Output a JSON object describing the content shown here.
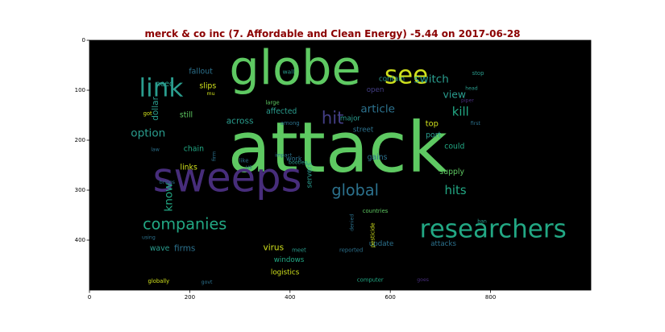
{
  "chart_data": {
    "type": "wordcloud",
    "title": "merck & co inc (7. Affordable and Clean Energy) -5.44 on 2017-06-28",
    "xlim": [
      0,
      1000
    ],
    "ylim": [
      0,
      500
    ],
    "x_ticks": [
      "0",
      "200",
      "400",
      "600",
      "800"
    ],
    "y_ticks": [
      "0",
      "100",
      "200",
      "300",
      "400"
    ],
    "x_tick_values": [
      0,
      200,
      400,
      600,
      800
    ],
    "y_tick_values": [
      0,
      100,
      200,
      300,
      400
    ],
    "colors": {
      "background": "#000000",
      "title": "#8b0000"
    },
    "words": [
      {
        "text": "attack",
        "x": 495,
        "y": 215,
        "size": 140,
        "color": "#5ec962"
      },
      {
        "text": "globe",
        "x": 410,
        "y": 55,
        "size": 95,
        "color": "#5ec962"
      },
      {
        "text": "sweeps",
        "x": 275,
        "y": 275,
        "size": 80,
        "color": "#472d7b"
      },
      {
        "text": "researchers",
        "x": 805,
        "y": 378,
        "size": 50,
        "color": "#22a884"
      },
      {
        "text": "link",
        "x": 143,
        "y": 96,
        "size": 50,
        "color": "#2a9d8e"
      },
      {
        "text": "see",
        "x": 632,
        "y": 70,
        "size": 50,
        "color": "#d0e11c"
      },
      {
        "text": "companies",
        "x": 190,
        "y": 368,
        "size": 31,
        "color": "#22a884"
      },
      {
        "text": "global",
        "x": 530,
        "y": 300,
        "size": 31,
        "color": "#2c728e"
      },
      {
        "text": "hit",
        "x": 485,
        "y": 155,
        "size": 34,
        "color": "#433e85"
      },
      {
        "text": "hits",
        "x": 730,
        "y": 300,
        "size": 24,
        "color": "#22a884"
      },
      {
        "text": "kill",
        "x": 740,
        "y": 143,
        "size": 24,
        "color": "#22a884"
      },
      {
        "text": "switch",
        "x": 682,
        "y": 78,
        "size": 22,
        "color": "#2a9d8e"
      },
      {
        "text": "article",
        "x": 575,
        "y": 138,
        "size": 22,
        "color": "#2c728e"
      },
      {
        "text": "view",
        "x": 728,
        "y": 108,
        "size": 20,
        "color": "#2a9d8e"
      },
      {
        "text": "option",
        "x": 117,
        "y": 186,
        "size": 22,
        "color": "#2a9d8e"
      },
      {
        "text": "know",
        "x": 158,
        "y": 314,
        "size": 22,
        "color": "#22a884",
        "rotate": -90
      },
      {
        "text": "dollar",
        "x": 132,
        "y": 137,
        "size": 17,
        "color": "#2a9d8e",
        "rotate": -90
      },
      {
        "text": "across",
        "x": 300,
        "y": 162,
        "size": 17,
        "color": "#2a9d8e"
      },
      {
        "text": "firms",
        "x": 190,
        "y": 417,
        "size": 17,
        "color": "#2c728e"
      },
      {
        "text": "virus",
        "x": 367,
        "y": 415,
        "size": 17,
        "color": "#d0e11c"
      },
      {
        "text": "windows",
        "x": 398,
        "y": 440,
        "size": 14,
        "color": "#22a884"
      },
      {
        "text": "logistics",
        "x": 390,
        "y": 465,
        "size": 14,
        "color": "#d0e11c"
      },
      {
        "text": "affected",
        "x": 383,
        "y": 143,
        "size": 15,
        "color": "#2a9d8e"
      },
      {
        "text": "chain",
        "x": 208,
        "y": 218,
        "size": 15,
        "color": "#22a884"
      },
      {
        "text": "links",
        "x": 198,
        "y": 255,
        "size": 15,
        "color": "#d0e11c"
      },
      {
        "text": "slips",
        "x": 236,
        "y": 92,
        "size": 15,
        "color": "#d0e11c"
      },
      {
        "text": "fallout",
        "x": 222,
        "y": 63,
        "size": 15,
        "color": "#2c728e"
      },
      {
        "text": "need",
        "x": 150,
        "y": 88,
        "size": 15,
        "color": "#2a9d8e"
      },
      {
        "text": "still",
        "x": 193,
        "y": 150,
        "size": 15,
        "color": "#5ec962"
      },
      {
        "text": "wave",
        "x": 140,
        "y": 417,
        "size": 15,
        "color": "#2a9d8e"
      },
      {
        "text": "work",
        "x": 408,
        "y": 236,
        "size": 13,
        "color": "#2c728e"
      },
      {
        "text": "major",
        "x": 520,
        "y": 157,
        "size": 14,
        "color": "#2a9d8e"
      },
      {
        "text": "street",
        "x": 546,
        "y": 180,
        "size": 14,
        "color": "#2c728e"
      },
      {
        "text": "top",
        "x": 683,
        "y": 168,
        "size": 16,
        "color": "#d0e11c"
      },
      {
        "text": "port",
        "x": 686,
        "y": 190,
        "size": 15,
        "color": "#2a9d8e"
      },
      {
        "text": "could",
        "x": 728,
        "y": 213,
        "size": 15,
        "color": "#22a884"
      },
      {
        "text": "supply",
        "x": 723,
        "y": 264,
        "size": 15,
        "color": "#5ec962"
      },
      {
        "text": "gains",
        "x": 574,
        "y": 235,
        "size": 15,
        "color": "#2c728e"
      },
      {
        "text": "attacks",
        "x": 706,
        "y": 408,
        "size": 14,
        "color": "#2c728e"
      },
      {
        "text": "update",
        "x": 582,
        "y": 408,
        "size": 14,
        "color": "#2c728e"
      },
      {
        "text": "contain",
        "x": 603,
        "y": 78,
        "size": 14,
        "color": "#2a9d8e"
      },
      {
        "text": "open",
        "x": 570,
        "y": 100,
        "size": 14,
        "color": "#433e85"
      },
      {
        "text": "servers",
        "x": 440,
        "y": 270,
        "size": 14,
        "color": "#2a9d8e",
        "rotate": -90
      },
      {
        "text": "computer",
        "x": 560,
        "y": 480,
        "size": 11,
        "color": "#22a884"
      },
      {
        "text": "countries",
        "x": 570,
        "y": 342,
        "size": 11,
        "color": "#5ec962"
      },
      {
        "text": "reported",
        "x": 522,
        "y": 420,
        "size": 11,
        "color": "#2c728e"
      },
      {
        "text": "pesticide",
        "x": 565,
        "y": 390,
        "size": 11,
        "color": "#d0e11c",
        "rotate": -90
      },
      {
        "text": "denied",
        "x": 524,
        "y": 365,
        "size": 10,
        "color": "#2c728e",
        "rotate": -90
      },
      {
        "text": "wall",
        "x": 397,
        "y": 63,
        "size": 12,
        "color": "#2a9d8e"
      },
      {
        "text": "large",
        "x": 365,
        "y": 125,
        "size": 11,
        "color": "#5ec962"
      },
      {
        "text": "among",
        "x": 400,
        "y": 166,
        "size": 11,
        "color": "#2c728e"
      },
      {
        "text": "impact",
        "x": 387,
        "y": 231,
        "size": 10,
        "color": "#2c728e"
      },
      {
        "text": "bootleg",
        "x": 416,
        "y": 245,
        "size": 10,
        "color": "#2a9d8e"
      },
      {
        "text": "like",
        "x": 308,
        "y": 241,
        "size": 11,
        "color": "#2c728e"
      },
      {
        "text": "us",
        "x": 318,
        "y": 254,
        "size": 11,
        "color": "#2c728e"
      },
      {
        "text": "meet",
        "x": 418,
        "y": 420,
        "size": 11,
        "color": "#2a9d8e"
      },
      {
        "text": "got",
        "x": 116,
        "y": 147,
        "size": 11,
        "color": "#d0e11c"
      },
      {
        "text": "mu",
        "x": 242,
        "y": 107,
        "size": 10,
        "color": "#d0e11c"
      },
      {
        "text": "law",
        "x": 131,
        "y": 219,
        "size": 10,
        "color": "#2c728e"
      },
      {
        "text": "firm",
        "x": 249,
        "y": 232,
        "size": 10,
        "color": "#2c728e",
        "rotate": -90
      },
      {
        "text": "brings",
        "x": 155,
        "y": 285,
        "size": 10,
        "color": "#2c728e"
      },
      {
        "text": "using",
        "x": 118,
        "y": 395,
        "size": 10,
        "color": "#2c728e"
      },
      {
        "text": "globally",
        "x": 138,
        "y": 482,
        "size": 11,
        "color": "#d0e11c"
      },
      {
        "text": "govt",
        "x": 234,
        "y": 485,
        "size": 10,
        "color": "#2c728e"
      },
      {
        "text": "stop",
        "x": 775,
        "y": 66,
        "size": 11,
        "color": "#2a9d8e"
      },
      {
        "text": "head",
        "x": 762,
        "y": 97,
        "size": 10,
        "color": "#2a9d8e"
      },
      {
        "text": "piper",
        "x": 754,
        "y": 121,
        "size": 10,
        "color": "#472d7b"
      },
      {
        "text": "first",
        "x": 770,
        "y": 167,
        "size": 10,
        "color": "#2c728e"
      },
      {
        "text": "ban",
        "x": 783,
        "y": 363,
        "size": 10,
        "color": "#2a9d8e"
      },
      {
        "text": "goes",
        "x": 665,
        "y": 480,
        "size": 10,
        "color": "#472d7b"
      }
    ]
  }
}
